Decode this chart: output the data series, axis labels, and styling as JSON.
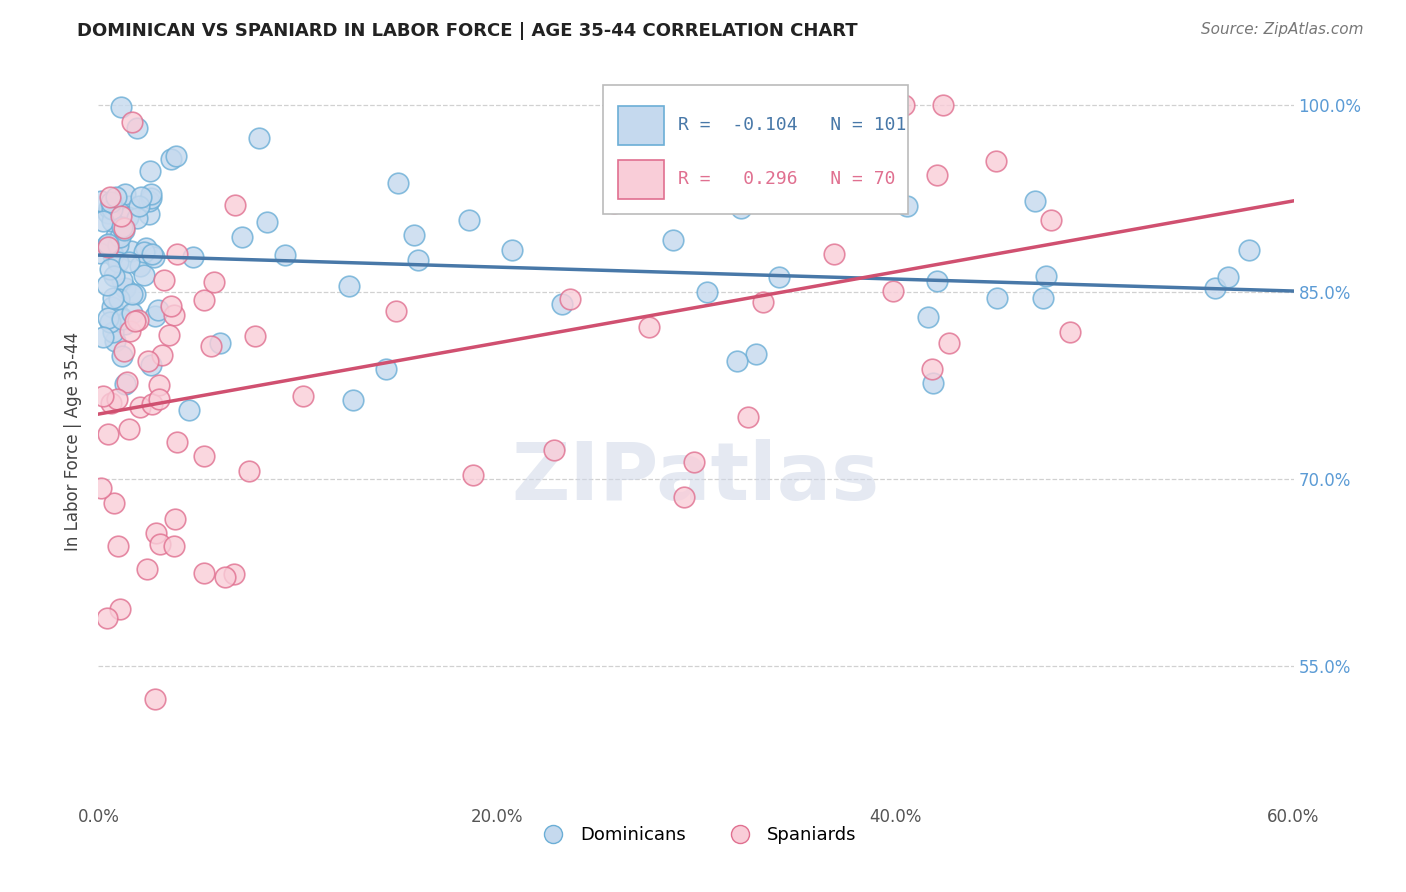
{
  "title": "DOMINICAN VS SPANIARD IN LABOR FORCE | AGE 35-44 CORRELATION CHART",
  "source_text": "Source: ZipAtlas.com",
  "ylabel": "In Labor Force | Age 35-44",
  "xlim": [
    0.0,
    0.6
  ],
  "ylim": [
    0.44,
    1.02
  ],
  "xtick_labels": [
    "0.0%",
    "20.0%",
    "40.0%",
    "60.0%"
  ],
  "xtick_vals": [
    0.0,
    0.2,
    0.4,
    0.6
  ],
  "ytick_labels": [
    "55.0%",
    "70.0%",
    "85.0%",
    "100.0%"
  ],
  "ytick_vals": [
    0.55,
    0.7,
    0.85,
    1.0
  ],
  "blue_R": -0.104,
  "blue_N": 101,
  "pink_R": 0.296,
  "pink_N": 70,
  "blue_color": "#c5d9ee",
  "blue_edge_color": "#6baed6",
  "pink_color": "#f9cdd8",
  "pink_edge_color": "#e07090",
  "blue_line_color": "#4878a8",
  "pink_line_color": "#d05070",
  "legend_blue_label": "Dominicans",
  "legend_pink_label": "Spaniards",
  "watermark": "ZIPatlas",
  "tick_color": "#5b9bd5",
  "title_fontsize": 13,
  "source_fontsize": 11
}
